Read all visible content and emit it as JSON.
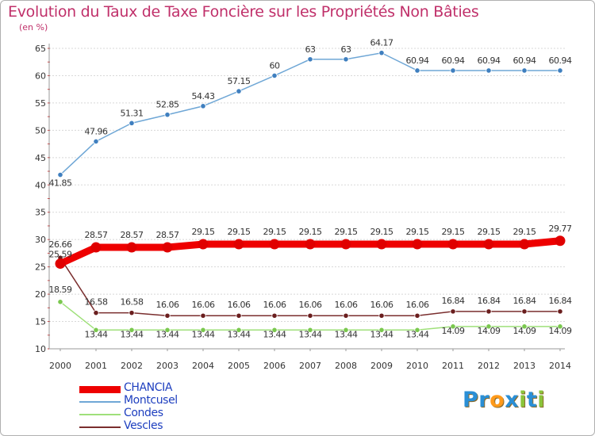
{
  "title": "Evolution du Taux de Taxe Foncière sur les Propriétés Non Bâties",
  "unit_label": "(en %)",
  "chart_data": {
    "type": "line",
    "title": "Evolution du Taux de Taxe Foncière sur les Propriétés Non Bâties",
    "ylabel": "(en %)",
    "xlabel": "",
    "categories": [
      "2000",
      "2001",
      "2002",
      "2003",
      "2004",
      "2005",
      "2006",
      "2007",
      "2008",
      "2009",
      "2010",
      "2011",
      "2012",
      "2013",
      "2014"
    ],
    "ylim": [
      10,
      65
    ],
    "yticks": [
      10,
      15,
      20,
      25,
      30,
      35,
      40,
      45,
      50,
      55,
      60,
      65
    ],
    "grid": "horizontal dashed",
    "legend": "bottom-left",
    "series": [
      {
        "name": "Montcusel",
        "color": "#6fa7d6",
        "marker_color": "#3f7fbf",
        "values": [
          41.85,
          47.96,
          51.31,
          52.85,
          54.43,
          57.15,
          60,
          63,
          63,
          64.17,
          60.94,
          60.94,
          60.94,
          60.94,
          60.94
        ],
        "labels": [
          "41.85",
          "47.96",
          "51.31",
          "52.85",
          "54.43",
          "57.15",
          "60",
          "63",
          "63",
          "64.17",
          "60.94",
          "60.94",
          "60.94",
          "60.94",
          "60.94"
        ]
      },
      {
        "name": "Vescles",
        "color": "#7a2e2e",
        "marker_color": "#6a1e1e",
        "values": [
          26.66,
          16.58,
          16.58,
          16.06,
          16.06,
          16.06,
          16.06,
          16.06,
          16.06,
          16.06,
          16.06,
          16.84,
          16.84,
          16.84,
          16.84
        ],
        "labels": [
          "26.66",
          "16.58",
          "16.58",
          "16.06",
          "16.06",
          "16.06",
          "16.06",
          "16.06",
          "16.06",
          "16.06",
          "16.06",
          "16.84",
          "16.84",
          "16.84",
          "16.84"
        ]
      },
      {
        "name": "Condes",
        "color": "#9fe07a",
        "marker_color": "#7ac84e",
        "values": [
          18.59,
          13.44,
          13.44,
          13.44,
          13.44,
          13.44,
          13.44,
          13.44,
          13.44,
          13.44,
          13.44,
          14.09,
          14.09,
          14.09,
          14.09
        ],
        "labels": [
          "18.59",
          "13.44",
          "13.44",
          "13.44",
          "13.44",
          "13.44",
          "13.44",
          "13.44",
          "13.44",
          "13.44",
          "13.44",
          "14.09",
          "14.09",
          "14.09",
          "14.09"
        ]
      },
      {
        "name": "CHANCIA",
        "color": "#ee0000",
        "marker_color": "#e00000",
        "highlight": true,
        "values": [
          25.59,
          28.57,
          28.57,
          28.57,
          29.15,
          29.15,
          29.15,
          29.15,
          29.15,
          29.15,
          29.15,
          29.15,
          29.15,
          29.15,
          29.77
        ],
        "labels": [
          "25.59",
          "28.57",
          "28.57",
          "28.57",
          "29.15",
          "29.15",
          "29.15",
          "29.15",
          "29.15",
          "29.15",
          "29.15",
          "29.15",
          "29.15",
          "29.15",
          "29.77"
        ]
      }
    ]
  },
  "legend": [
    {
      "label": "CHANCIA",
      "color": "#ee0000",
      "text_color": "#1e3fbf"
    },
    {
      "label": "Montcusel",
      "color": "#6fa7d6",
      "text_color": "#1e3fbf"
    },
    {
      "label": "Condes",
      "color": "#9fe07a",
      "text_color": "#1e3fbf"
    },
    {
      "label": "Vescles",
      "color": "#7a2e2e",
      "text_color": "#1e3fbf"
    }
  ],
  "logo": {
    "text": "Proxiti",
    "letters": [
      "P",
      "r",
      "o",
      "x",
      "i",
      "t",
      "i"
    ],
    "colors": [
      "#2a8fd6",
      "#2a8fd6",
      "#ff9a1a",
      "#2a8fd6",
      "#8ac43a",
      "#2a8fd6",
      "#8ac43a"
    ]
  }
}
